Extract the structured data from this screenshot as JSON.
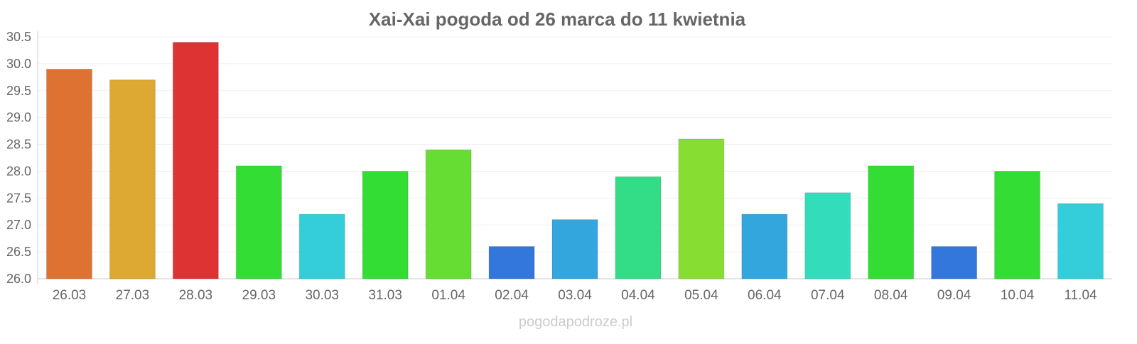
{
  "chart_data": {
    "type": "bar",
    "title": "Xai-Xai pogoda od 26 marca do 11 kwietnia",
    "xlabel": "",
    "ylabel": "",
    "ylim": [
      26.0,
      30.5
    ],
    "yticks": [
      "26.0",
      "26.5",
      "27.0",
      "27.5",
      "28.0",
      "28.5",
      "29.0",
      "29.5",
      "30.0",
      "30.5"
    ],
    "grid": true,
    "categories": [
      "26.03",
      "27.03",
      "28.03",
      "29.03",
      "30.03",
      "31.03",
      "01.04",
      "02.04",
      "03.04",
      "04.04",
      "05.04",
      "06.04",
      "07.04",
      "08.04",
      "09.04",
      "10.04",
      "11.04"
    ],
    "values": [
      29.9,
      29.7,
      30.4,
      28.1,
      27.2,
      28.0,
      28.4,
      26.6,
      27.1,
      27.9,
      28.6,
      27.2,
      27.6,
      28.1,
      26.6,
      28.0,
      27.4
    ],
    "colors": [
      "#dd7233",
      "#dda933",
      "#dd3333",
      "#33dd33",
      "#33ceda",
      "#33dd33",
      "#66dd33",
      "#3377dd",
      "#33a6dd",
      "#33dd88",
      "#88dd33",
      "#33a6dd",
      "#33ddbb",
      "#33dd33",
      "#3377dd",
      "#33dd33",
      "#33ceda"
    ]
  },
  "watermark": "pogodapodroze.pl"
}
